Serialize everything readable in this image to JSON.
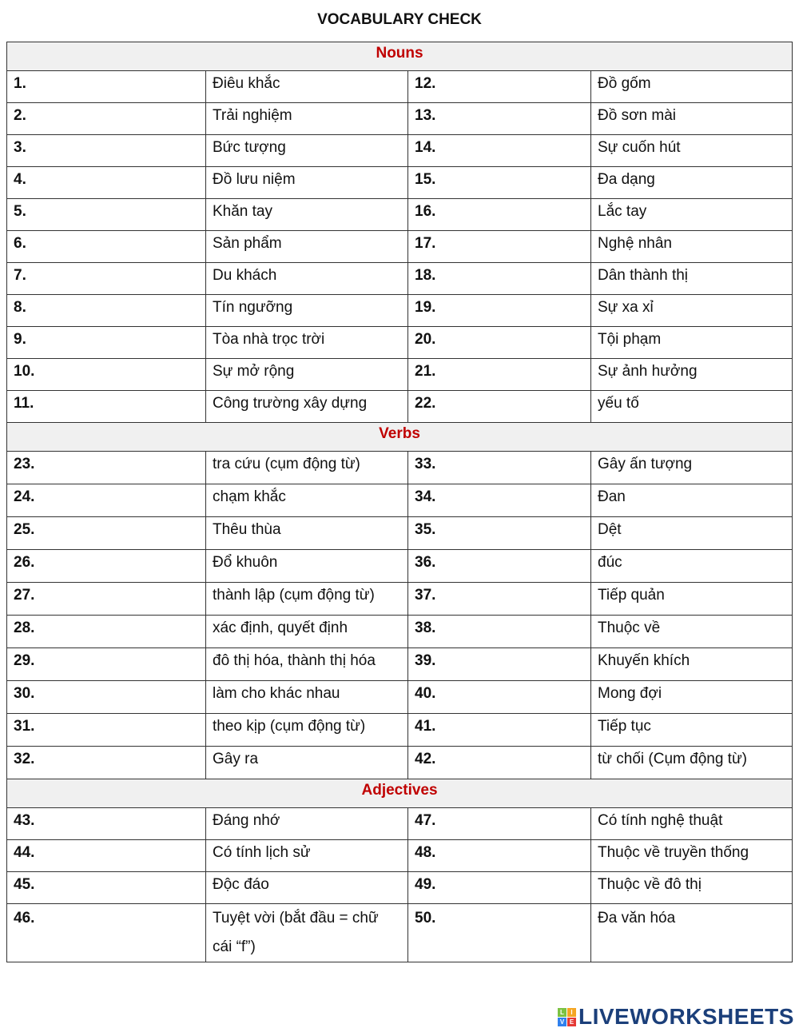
{
  "title": "VOCABULARY CHECK",
  "sections": [
    {
      "heading": "Nouns",
      "rows": [
        [
          "1.",
          "Điêu khắc",
          "12.",
          "Đồ gốm"
        ],
        [
          "2.",
          "Trải nghiệm",
          "13.",
          "Đồ sơn mài"
        ],
        [
          "3.",
          "Bức tượng",
          "14.",
          "Sự cuốn hút"
        ],
        [
          "4.",
          "Đồ lưu niệm",
          "15.",
          "Đa dạng"
        ],
        [
          "5.",
          "Khăn tay",
          "16.",
          "Lắc tay"
        ],
        [
          "6.",
          "Sản phẩm",
          "17.",
          "Nghệ nhân"
        ],
        [
          "7.",
          "Du khách",
          "18.",
          "Dân thành thị"
        ],
        [
          "8.",
          "Tín ngưỡng",
          "19.",
          "Sự xa xỉ"
        ],
        [
          "9.",
          "Tòa nhà trọc trời",
          "20.",
          "Tội phạm"
        ],
        [
          "10.",
          "Sự mở rộng",
          "21.",
          "Sự ảnh hưởng"
        ],
        [
          "11.",
          "Công trường xây dựng",
          "22.",
          "yếu tố"
        ]
      ]
    },
    {
      "heading": "Verbs",
      "rows": [
        [
          "23.",
          "tra cứu (cụm động từ)",
          "33.",
          "Gây ấn tượng"
        ],
        [
          "24.",
          "chạm khắc",
          "34.",
          "Đan"
        ],
        [
          "25.",
          "Thêu thùa",
          "35.",
          "Dệt"
        ],
        [
          "26.",
          "Đổ khuôn",
          "36.",
          "đúc"
        ],
        [
          "27.",
          "thành lập (cụm động từ)",
          "37.",
          "Tiếp quản"
        ],
        [
          "28.",
          "xác định, quyết định",
          "38.",
          "Thuộc về"
        ],
        [
          "29.",
          "đô thị hóa, thành thị hóa",
          "39.",
          "Khuyến khích"
        ],
        [
          "30.",
          "làm cho khác nhau",
          "40.",
          "Mong đợi"
        ],
        [
          "31.",
          "theo kịp (cụm động từ)",
          "41.",
          "Tiếp tục"
        ],
        [
          "32.",
          "Gây ra",
          "42.",
          "từ chối (Cụm động từ)"
        ]
      ]
    },
    {
      "heading": "Adjectives",
      "rows": [
        [
          "43.",
          "Đáng nhớ",
          "47.",
          "Có tính nghệ thuật"
        ],
        [
          "44.",
          "Có tính lịch sử",
          "48.",
          "Thuộc về truyền thống"
        ],
        [
          "45.",
          "Độc đáo",
          "49.",
          "Thuộc về đô thị"
        ],
        [
          "46.",
          "Tuyệt vời (bắt đầu = chữ cái “f”)",
          "50.",
          "Đa văn hóa"
        ]
      ]
    }
  ],
  "logo": {
    "text": "LIVEWORKSHEETS",
    "blocks": [
      "L",
      "I",
      "V",
      "E"
    ],
    "block_colors": [
      "#7cc242",
      "#f5a623",
      "#2f80ed",
      "#e53935"
    ],
    "text_color": "#1b3f7a"
  },
  "colors": {
    "section_heading": "#c00000",
    "section_bg": "#f0f0f0"
  }
}
